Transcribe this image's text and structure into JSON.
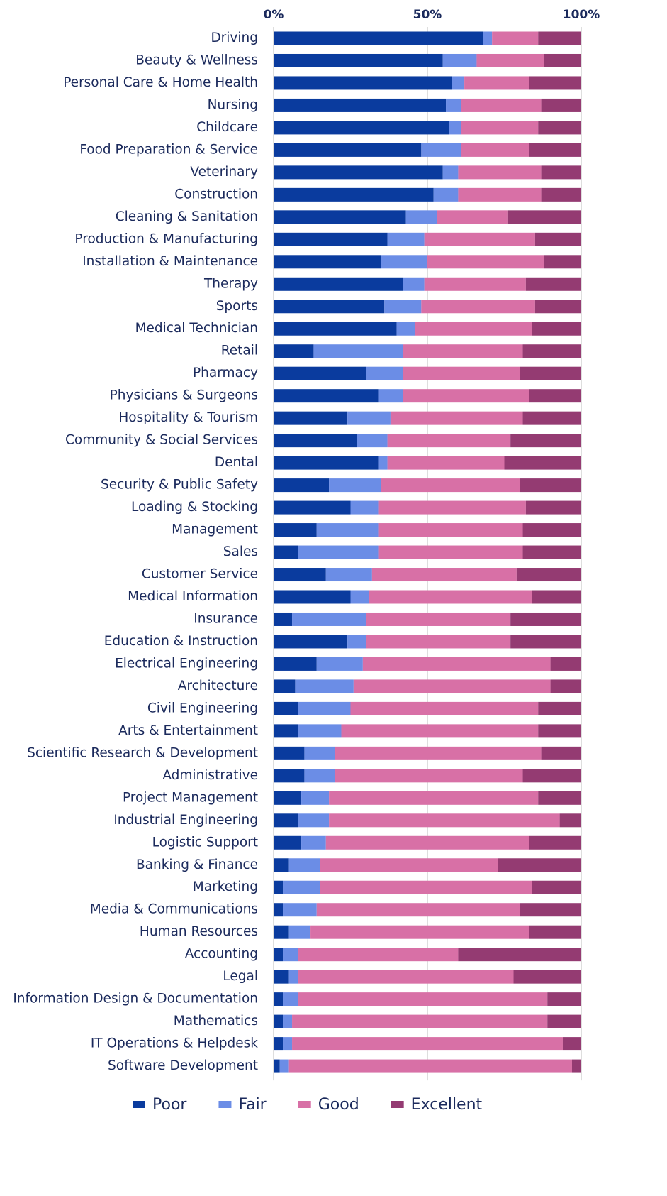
{
  "chart_data": {
    "type": "stacked_barh",
    "categories": [
      "Driving",
      "Beauty & Wellness",
      "Personal Care & Home Health",
      "Nursing",
      "Childcare",
      "Food Preparation & Service",
      "Veterinary",
      "Construction",
      "Cleaning & Sanitation",
      "Production & Manufacturing",
      "Installation & Maintenance",
      "Therapy",
      "Sports",
      "Medical Technician",
      "Retail",
      "Pharmacy",
      "Physicians & Surgeons",
      "Hospitality & Tourism",
      "Community & Social Services",
      "Dental",
      "Security & Public Safety",
      "Loading & Stocking",
      "Management",
      "Sales",
      "Customer Service",
      "Medical Information",
      "Insurance",
      "Education & Instruction",
      "Electrical Engineering",
      "Architecture",
      "Civil Engineering",
      "Arts & Entertainment",
      "Scientific Research & Development",
      "Administrative",
      "Project Management",
      "Industrial Engineering",
      "Logistic Support",
      "Banking & Finance",
      "Marketing",
      "Media & Communications",
      "Human Resources",
      "Accounting",
      "Legal",
      "Information Design & Documentation",
      "Mathematics",
      "IT Operations & Helpdesk",
      "Software Development"
    ],
    "series": [
      {
        "name": "Poor",
        "color": "#0a3b9e",
        "values": [
          68,
          55,
          58,
          56,
          57,
          48,
          55,
          52,
          43,
          37,
          35,
          42,
          36,
          40,
          13,
          30,
          34,
          24,
          27,
          34,
          18,
          25,
          14,
          8,
          17,
          25,
          6,
          24,
          14,
          7,
          8,
          8,
          10,
          10,
          9,
          8,
          9,
          5,
          3,
          3,
          5,
          3,
          5,
          3,
          3,
          3,
          2
        ]
      },
      {
        "name": "Fair",
        "color": "#6b8de6",
        "values": [
          3,
          11,
          4,
          5,
          4,
          13,
          5,
          8,
          10,
          12,
          15,
          7,
          12,
          6,
          29,
          12,
          8,
          14,
          10,
          3,
          17,
          9,
          20,
          26,
          15,
          6,
          24,
          6,
          15,
          19,
          17,
          14,
          10,
          10,
          9,
          10,
          8,
          10,
          12,
          11,
          7,
          5,
          3,
          5,
          3,
          3,
          3
        ]
      },
      {
        "name": "Good",
        "color": "#d870a6",
        "values": [
          15,
          22,
          21,
          26,
          25,
          22,
          27,
          27,
          23,
          36,
          38,
          33,
          37,
          38,
          39,
          38,
          41,
          43,
          40,
          38,
          45,
          48,
          47,
          47,
          47,
          53,
          47,
          47,
          61,
          64,
          61,
          64,
          67,
          61,
          68,
          75,
          66,
          58,
          69,
          66,
          71,
          52,
          70,
          81,
          83,
          88,
          92
        ]
      },
      {
        "name": "Excellent",
        "color": "#943b72",
        "values": [
          14,
          12,
          17,
          13,
          14,
          17,
          13,
          13,
          24,
          15,
          12,
          18,
          15,
          16,
          19,
          20,
          17,
          19,
          23,
          25,
          20,
          18,
          19,
          19,
          21,
          16,
          23,
          23,
          10,
          10,
          14,
          14,
          13,
          19,
          14,
          7,
          17,
          27,
          16,
          20,
          17,
          40,
          22,
          11,
          11,
          6,
          3
        ]
      }
    ],
    "xlim": [
      0,
      100
    ],
    "xticks": [
      {
        "value": 0,
        "label": "0%"
      },
      {
        "value": 50,
        "label": "50%"
      },
      {
        "value": 100,
        "label": "100%"
      }
    ],
    "grid": true,
    "legend": "bottom"
  }
}
